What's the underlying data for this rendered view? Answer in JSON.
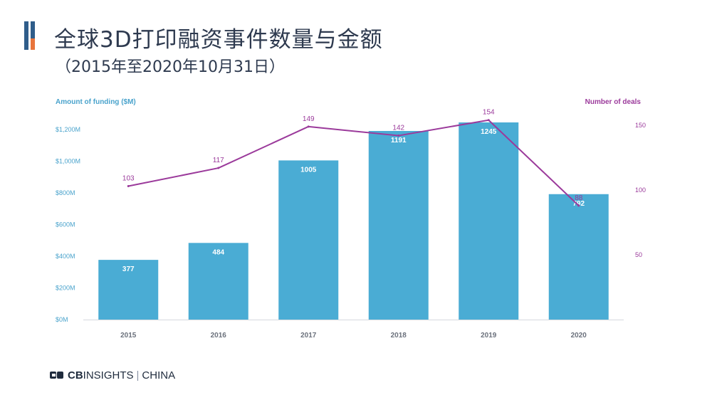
{
  "header": {
    "title": "全球3D打印融资事件数量与金额",
    "subtitle": "（2015年至2020年10月31日）"
  },
  "footer": {
    "brand_bold": "CB",
    "brand_rest": "INSIGHTS",
    "separator": "|",
    "region": "CHINA"
  },
  "colors": {
    "bar": "#4aacd4",
    "line": "#9b3a9b",
    "left_axis_text": "#4aa3cc",
    "right_axis_text": "#9b3a9b",
    "tick_text": "#8a8f99",
    "title": "#2e3a4f",
    "logo_blue": "#2f5d8a",
    "logo_orange": "#e8743b"
  },
  "chart_data": {
    "type": "bar",
    "categories": [
      "2015",
      "2016",
      "2017",
      "2018",
      "2019",
      "2020"
    ],
    "series": [
      {
        "name": "Amount of funding ($M)",
        "type": "bar",
        "axis": "left",
        "values": [
          377,
          484,
          1005,
          1191,
          1245,
          792
        ]
      },
      {
        "name": "Number of deals",
        "type": "line",
        "axis": "right",
        "values": [
          103,
          117,
          149,
          142,
          154,
          88
        ]
      }
    ],
    "ylabel": "Amount of funding ($M)",
    "y2label": "Number of deals",
    "ylim": [
      0,
      1300
    ],
    "yticks": [
      0,
      200,
      400,
      600,
      800,
      1000,
      1200
    ],
    "ytick_labels": [
      "$0M",
      "$200M",
      "$400M",
      "$600M",
      "$800M",
      "$1,000M",
      "$1,200M"
    ],
    "y2lim": [
      0,
      165
    ],
    "y2ticks": [
      50,
      100,
      150
    ],
    "y2tick_labels": [
      "50",
      "100",
      "150"
    ],
    "grid": false
  }
}
